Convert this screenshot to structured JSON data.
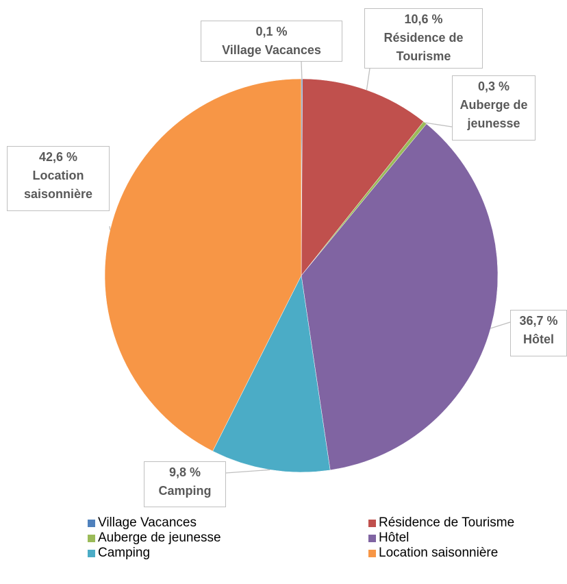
{
  "chart_data": {
    "type": "pie",
    "categories": [
      "Village Vacances",
      "Résidence de Tourisme",
      "Auberge de jeunesse",
      "Hôtel",
      "Camping",
      "Location saisonnière"
    ],
    "values": [
      0.1,
      10.6,
      0.3,
      36.7,
      9.8,
      42.6
    ],
    "value_labels": [
      "0,1 %",
      "10,6 %",
      "0,3 %",
      "36,7 %",
      "9,8 %",
      "42,6 %"
    ],
    "colors": [
      "#4f81bd",
      "#c0504d",
      "#9bbb59",
      "#8064a2",
      "#4bacc6",
      "#f79646"
    ],
    "legend": "bottom"
  }
}
